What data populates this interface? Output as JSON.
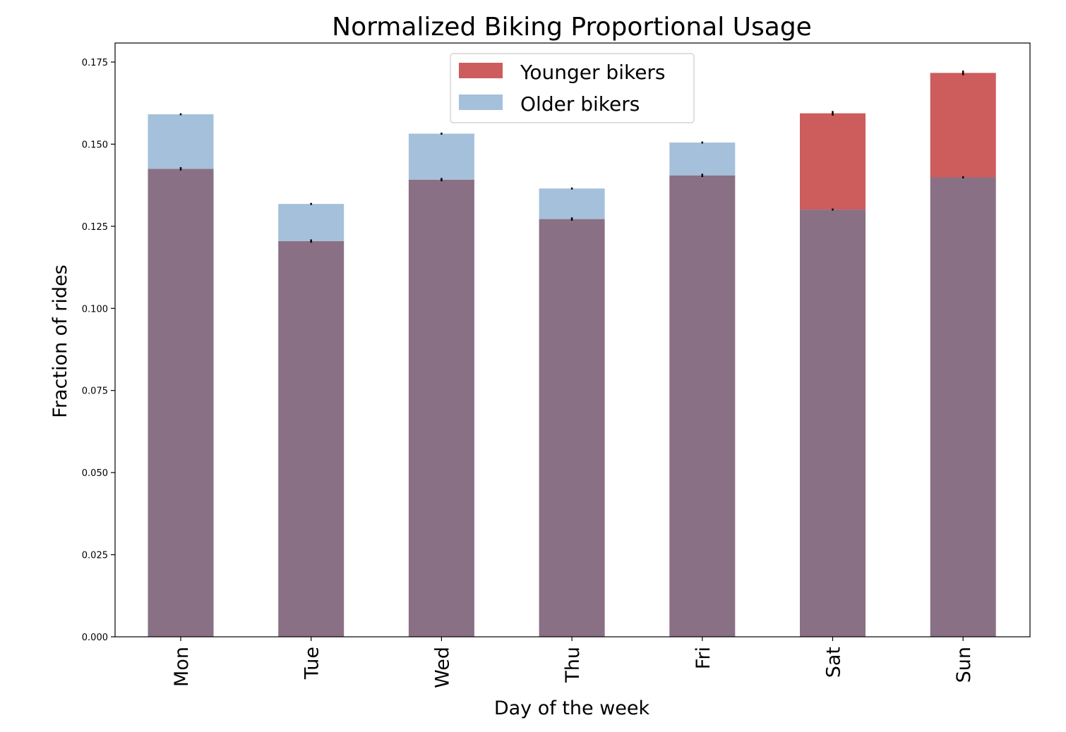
{
  "chart_data": {
    "type": "bar",
    "title": "Normalized Biking Proportional Usage",
    "xlabel": "Day of the week",
    "ylabel": "Fraction of rides",
    "categories": [
      "Mon",
      "Tue",
      "Wed",
      "Thu",
      "Fri",
      "Sat",
      "Sun"
    ],
    "ylim": [
      0,
      0.18
    ],
    "yticks": [
      0.0,
      0.025,
      0.05,
      0.075,
      0.1,
      0.125,
      0.15,
      0.175
    ],
    "ytick_labels": [
      "0.000",
      "0.025",
      "0.050",
      "0.075",
      "0.100",
      "0.125",
      "0.150",
      "0.175"
    ],
    "overlay": true,
    "legend_placement": "top-center",
    "series": [
      {
        "name": "Younger bikers",
        "color": "#cd5c5c",
        "values": [
          0.1425,
          0.1205,
          0.1392,
          0.1272,
          0.1405,
          0.1594,
          0.1717
        ],
        "errors": [
          0.0005,
          0.0005,
          0.0005,
          0.0005,
          0.0005,
          0.0007,
          0.0007
        ]
      },
      {
        "name": "Older bikers",
        "color": "#a5c0da",
        "values": [
          0.1591,
          0.1318,
          0.1532,
          0.1365,
          0.1505,
          0.1301,
          0.1399
        ],
        "errors": [
          0.0003,
          0.0003,
          0.0003,
          0.0003,
          0.0003,
          0.0003,
          0.0003
        ]
      }
    ],
    "overlap_color": "#8a7084"
  }
}
